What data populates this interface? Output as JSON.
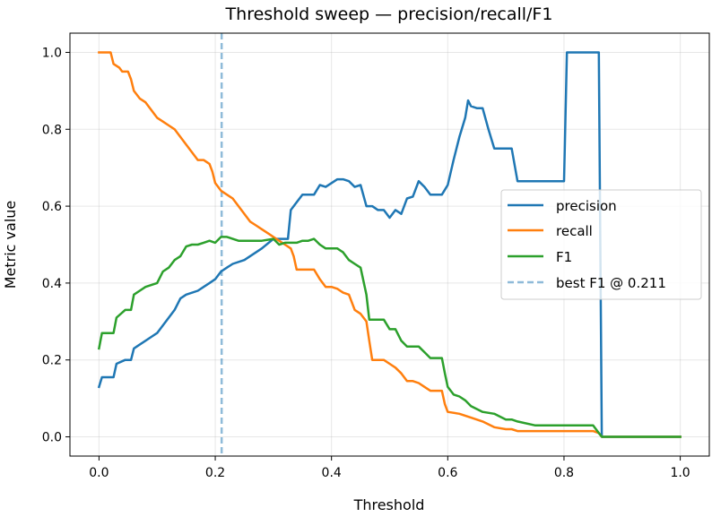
{
  "chart_data": {
    "type": "line",
    "title": "Threshold sweep — precision/recall/F1",
    "xlabel": "Threshold",
    "ylabel": "Metric value",
    "xlim": [
      -0.05,
      1.05
    ],
    "ylim": [
      -0.05,
      1.05
    ],
    "xticks": [
      0.0,
      0.2,
      0.4,
      0.6,
      0.8,
      1.0
    ],
    "xtick_labels": [
      "0.0",
      "0.2",
      "0.4",
      "0.6",
      "0.8",
      "1.0"
    ],
    "yticks": [
      0.0,
      0.2,
      0.4,
      0.6,
      0.8,
      1.0
    ],
    "ytick_labels": [
      "0.0",
      "0.2",
      "0.4",
      "0.6",
      "0.8",
      "1.0"
    ],
    "grid": true,
    "legend_position": "center-right",
    "series": [
      {
        "name": "precision",
        "color": "#1f77b4",
        "x": [
          0.0,
          0.005,
          0.025,
          0.03,
          0.045,
          0.055,
          0.06,
          0.07,
          0.09,
          0.1,
          0.11,
          0.12,
          0.13,
          0.14,
          0.15,
          0.17,
          0.18,
          0.19,
          0.2,
          0.21,
          0.22,
          0.23,
          0.25,
          0.26,
          0.28,
          0.3,
          0.325,
          0.33,
          0.34,
          0.35,
          0.37,
          0.38,
          0.39,
          0.4,
          0.41,
          0.42,
          0.43,
          0.44,
          0.45,
          0.46,
          0.47,
          0.48,
          0.49,
          0.5,
          0.51,
          0.52,
          0.53,
          0.54,
          0.55,
          0.56,
          0.57,
          0.58,
          0.59,
          0.6,
          0.61,
          0.62,
          0.63,
          0.635,
          0.64,
          0.65,
          0.66,
          0.67,
          0.68,
          0.69,
          0.7,
          0.705,
          0.71,
          0.72,
          0.73,
          0.74,
          0.75,
          0.76,
          0.77,
          0.78,
          0.79,
          0.795,
          0.8,
          0.805,
          0.81,
          0.82,
          0.83,
          0.84,
          0.85,
          0.855,
          0.86,
          0.865,
          0.9,
          0.95,
          1.0
        ],
        "y": [
          0.13,
          0.155,
          0.155,
          0.19,
          0.2,
          0.2,
          0.23,
          0.24,
          0.26,
          0.27,
          0.29,
          0.31,
          0.33,
          0.36,
          0.37,
          0.38,
          0.39,
          0.4,
          0.41,
          0.43,
          0.44,
          0.45,
          0.46,
          0.47,
          0.49,
          0.515,
          0.515,
          0.59,
          0.61,
          0.63,
          0.63,
          0.655,
          0.65,
          0.66,
          0.67,
          0.67,
          0.665,
          0.65,
          0.655,
          0.6,
          0.6,
          0.59,
          0.59,
          0.57,
          0.59,
          0.58,
          0.62,
          0.625,
          0.665,
          0.65,
          0.63,
          0.63,
          0.63,
          0.655,
          0.72,
          0.78,
          0.83,
          0.875,
          0.86,
          0.855,
          0.855,
          0.8,
          0.75,
          0.75,
          0.75,
          0.75,
          0.75,
          0.665,
          0.665,
          0.665,
          0.665,
          0.665,
          0.665,
          0.665,
          0.665,
          0.665,
          0.665,
          1.0,
          1.0,
          1.0,
          1.0,
          1.0,
          1.0,
          1.0,
          1.0,
          0.0,
          0.0,
          0.0,
          0.0
        ]
      },
      {
        "name": "recall",
        "color": "#ff7f0e",
        "x": [
          0.0,
          0.005,
          0.02,
          0.025,
          0.035,
          0.04,
          0.05,
          0.055,
          0.06,
          0.07,
          0.08,
          0.09,
          0.1,
          0.11,
          0.12,
          0.13,
          0.14,
          0.15,
          0.16,
          0.17,
          0.18,
          0.19,
          0.195,
          0.2,
          0.21,
          0.22,
          0.23,
          0.24,
          0.25,
          0.26,
          0.27,
          0.28,
          0.29,
          0.3,
          0.31,
          0.32,
          0.33,
          0.335,
          0.34,
          0.35,
          0.36,
          0.37,
          0.38,
          0.39,
          0.4,
          0.41,
          0.42,
          0.43,
          0.44,
          0.45,
          0.46,
          0.465,
          0.47,
          0.48,
          0.49,
          0.5,
          0.51,
          0.52,
          0.53,
          0.54,
          0.55,
          0.56,
          0.57,
          0.58,
          0.59,
          0.595,
          0.6,
          0.62,
          0.64,
          0.66,
          0.68,
          0.7,
          0.71,
          0.72,
          0.75,
          0.8,
          0.85,
          0.86,
          0.865,
          0.9,
          0.95,
          1.0
        ],
        "y": [
          1.0,
          1.0,
          1.0,
          0.97,
          0.96,
          0.95,
          0.95,
          0.93,
          0.9,
          0.88,
          0.87,
          0.85,
          0.83,
          0.82,
          0.81,
          0.8,
          0.78,
          0.76,
          0.74,
          0.72,
          0.72,
          0.71,
          0.69,
          0.66,
          0.64,
          0.63,
          0.62,
          0.6,
          0.58,
          0.56,
          0.55,
          0.54,
          0.53,
          0.52,
          0.51,
          0.5,
          0.49,
          0.47,
          0.435,
          0.435,
          0.435,
          0.435,
          0.41,
          0.39,
          0.39,
          0.385,
          0.375,
          0.37,
          0.33,
          0.32,
          0.3,
          0.25,
          0.2,
          0.2,
          0.2,
          0.19,
          0.18,
          0.165,
          0.145,
          0.145,
          0.14,
          0.13,
          0.12,
          0.12,
          0.12,
          0.085,
          0.065,
          0.06,
          0.05,
          0.04,
          0.025,
          0.02,
          0.02,
          0.015,
          0.015,
          0.015,
          0.015,
          0.01,
          0.0,
          0.0,
          0.0,
          0.0
        ]
      },
      {
        "name": "F1",
        "color": "#2ca02c",
        "x": [
          0.0,
          0.005,
          0.025,
          0.03,
          0.045,
          0.055,
          0.06,
          0.07,
          0.08,
          0.09,
          0.1,
          0.11,
          0.12,
          0.13,
          0.14,
          0.15,
          0.16,
          0.17,
          0.18,
          0.19,
          0.2,
          0.21,
          0.22,
          0.23,
          0.24,
          0.25,
          0.26,
          0.28,
          0.3,
          0.31,
          0.32,
          0.33,
          0.34,
          0.35,
          0.36,
          0.37,
          0.38,
          0.39,
          0.4,
          0.41,
          0.42,
          0.43,
          0.44,
          0.45,
          0.46,
          0.465,
          0.47,
          0.49,
          0.5,
          0.51,
          0.52,
          0.53,
          0.54,
          0.55,
          0.56,
          0.57,
          0.58,
          0.59,
          0.595,
          0.6,
          0.61,
          0.62,
          0.63,
          0.64,
          0.66,
          0.68,
          0.7,
          0.71,
          0.72,
          0.75,
          0.8,
          0.85,
          0.86,
          0.865,
          0.9,
          0.95,
          1.0
        ],
        "y": [
          0.23,
          0.27,
          0.27,
          0.31,
          0.33,
          0.33,
          0.37,
          0.38,
          0.39,
          0.395,
          0.4,
          0.43,
          0.44,
          0.46,
          0.47,
          0.495,
          0.5,
          0.5,
          0.505,
          0.51,
          0.505,
          0.52,
          0.52,
          0.515,
          0.51,
          0.51,
          0.51,
          0.51,
          0.515,
          0.5,
          0.505,
          0.505,
          0.505,
          0.51,
          0.51,
          0.515,
          0.5,
          0.49,
          0.49,
          0.49,
          0.48,
          0.46,
          0.45,
          0.44,
          0.37,
          0.305,
          0.305,
          0.305,
          0.28,
          0.28,
          0.25,
          0.235,
          0.235,
          0.235,
          0.22,
          0.205,
          0.205,
          0.205,
          0.165,
          0.13,
          0.11,
          0.105,
          0.095,
          0.08,
          0.065,
          0.06,
          0.045,
          0.045,
          0.04,
          0.03,
          0.03,
          0.03,
          0.01,
          0.0,
          0.0,
          0.0,
          0.0
        ]
      }
    ],
    "reference_line": {
      "label": "best F1 @ 0.211",
      "x": 0.211,
      "color": "#1f77b4",
      "style": "dashed"
    }
  }
}
